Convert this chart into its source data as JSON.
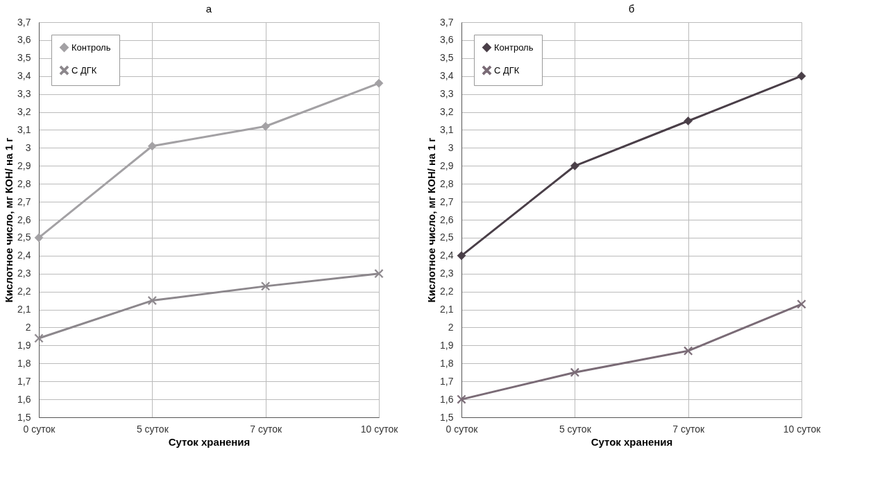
{
  "chart_data": [
    {
      "type": "line",
      "title": "а",
      "xlabel": "Суток хранения",
      "ylabel": "Кислотное число, мг КОН/ на 1 г",
      "categories": [
        "0 суток",
        "5 суток",
        "7 суток",
        "10 суток"
      ],
      "series": [
        {
          "name": "Контроль",
          "color": "#a3a1a4",
          "marker": "diamond",
          "values": [
            2.5,
            3.01,
            3.12,
            3.36
          ]
        },
        {
          "name": "С ДГК",
          "color": "#8c878c",
          "marker": "cross",
          "values": [
            1.94,
            2.15,
            2.23,
            2.3
          ]
        }
      ],
      "ylim": [
        1.5,
        3.7
      ],
      "yticks": [
        {
          "value": 1.5,
          "label": "1,5"
        },
        {
          "value": 1.6,
          "label": "1,6"
        },
        {
          "value": 1.7,
          "label": "1,7"
        },
        {
          "value": 1.8,
          "label": "1,8"
        },
        {
          "value": 1.9,
          "label": "1,9"
        },
        2,
        {
          "value": 2.1,
          "label": "2,1"
        },
        {
          "value": 2.2,
          "label": "2,2"
        },
        {
          "value": 2.3,
          "label": "2,3"
        },
        {
          "value": 2.4,
          "label": "2,4"
        },
        {
          "value": 2.5,
          "label": "2,5"
        },
        {
          "value": 2.6,
          "label": "2,6"
        },
        {
          "value": 2.7,
          "label": "2,7"
        },
        {
          "value": 2.8,
          "label": "2,8"
        },
        {
          "value": 2.9,
          "label": "2,9"
        },
        3,
        {
          "value": 3.1,
          "label": "3,1"
        },
        {
          "value": 3.2,
          "label": "3,2"
        },
        {
          "value": 3.3,
          "label": "3,3"
        },
        {
          "value": 3.4,
          "label": "3,4"
        },
        {
          "value": 3.5,
          "label": "3,5"
        },
        {
          "value": 3.6,
          "label": "3,6"
        },
        {
          "value": 3.7,
          "label": "3,7"
        }
      ],
      "grid": true,
      "legend": "top left",
      "line_style": "solid"
    },
    {
      "type": "line",
      "title": "б",
      "xlabel": "Суток хранения",
      "ylabel": "Кислотное число, мг КОН/ на 1 г",
      "categories": [
        "0 суток",
        "5 суток",
        "7 суток",
        "10 суток"
      ],
      "series": [
        {
          "name": "Контроль",
          "color": "#4a3f48",
          "marker": "diamond",
          "values": [
            2.4,
            2.9,
            3.15,
            3.4
          ]
        },
        {
          "name": "С ДГК",
          "color": "#7a6b76",
          "marker": "cross",
          "values": [
            1.6,
            1.75,
            1.87,
            2.13
          ]
        }
      ],
      "ylim": [
        1.5,
        3.7
      ],
      "yticks": [
        {
          "value": 1.5,
          "label": "1,5"
        },
        {
          "value": 1.6,
          "label": "1,6"
        },
        {
          "value": 1.7,
          "label": "1,7"
        },
        {
          "value": 1.8,
          "label": "1,8"
        },
        {
          "value": 1.9,
          "label": "1,9"
        },
        2,
        {
          "value": 2.1,
          "label": "2,1"
        },
        {
          "value": 2.2,
          "label": "2,2"
        },
        {
          "value": 2.3,
          "label": "2,3"
        },
        {
          "value": 2.4,
          "label": "2,4"
        },
        {
          "value": 2.5,
          "label": "2,5"
        },
        {
          "value": 2.6,
          "label": "2,6"
        },
        {
          "value": 2.7,
          "label": "2,7"
        },
        {
          "value": 2.8,
          "label": "2,8"
        },
        {
          "value": 2.9,
          "label": "2,9"
        },
        3,
        {
          "value": 3.1,
          "label": "3,1"
        },
        {
          "value": 3.2,
          "label": "3,2"
        },
        {
          "value": 3.3,
          "label": "3,3"
        },
        {
          "value": 3.4,
          "label": "3,4"
        },
        {
          "value": 3.5,
          "label": "3,5"
        },
        {
          "value": 3.6,
          "label": "3,6"
        },
        {
          "value": 3.7,
          "label": "3,7"
        }
      ],
      "grid": true,
      "legend": "top left",
      "line_style": "solid"
    }
  ]
}
